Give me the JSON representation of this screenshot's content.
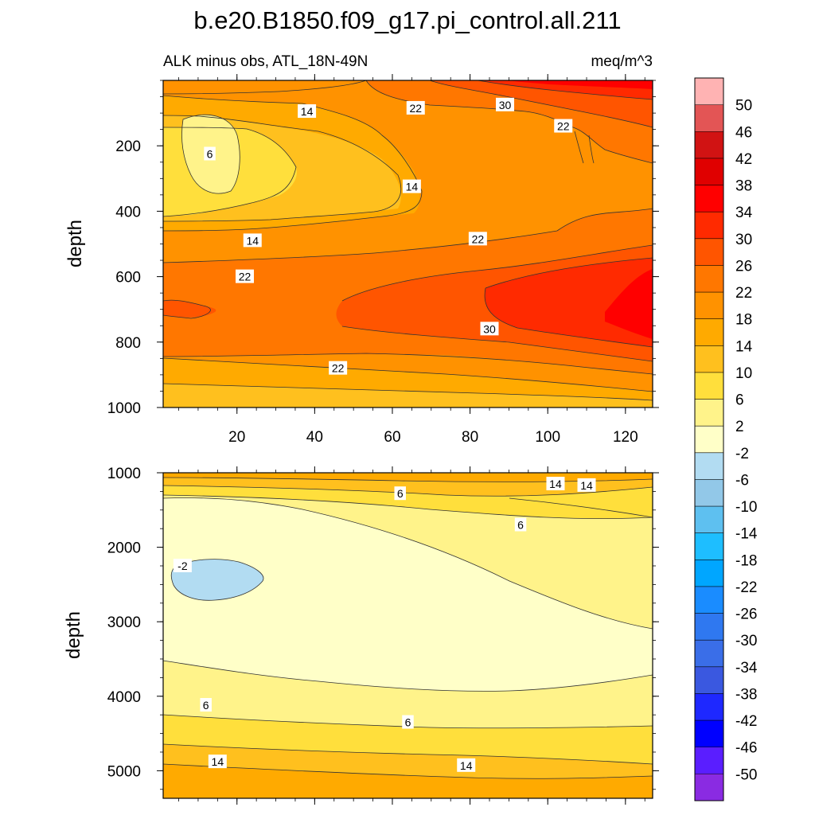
{
  "title": "b.e20.B1850.f09_g17.pi_control.all.211",
  "subtitle_left": "ALK minus obs, ATL_18N-49N",
  "subtitle_right": "meq/m^3",
  "chart_data": [
    {
      "type": "contour",
      "panel": "upper",
      "xlabel": "",
      "ylabel": "depth",
      "xlim": [
        1,
        127
      ],
      "ylim": [
        1000,
        0
      ],
      "x_ticks": [
        20,
        40,
        60,
        80,
        100,
        120
      ],
      "y_ticks": [
        200,
        400,
        600,
        800,
        1000
      ],
      "contour_labels": [
        {
          "text": "14",
          "x": 38,
          "depth": 95
        },
        {
          "text": "22",
          "x": 66,
          "depth": 85
        },
        {
          "text": "30",
          "x": 89,
          "depth": 75
        },
        {
          "text": "22",
          "x": 104,
          "depth": 140
        },
        {
          "text": "6",
          "x": 13,
          "depth": 225
        },
        {
          "text": "14",
          "x": 65,
          "depth": 325
        },
        {
          "text": "14",
          "x": 24,
          "depth": 490
        },
        {
          "text": "22",
          "x": 82,
          "depth": 485
        },
        {
          "text": "22",
          "x": 22,
          "depth": 600
        },
        {
          "text": "30",
          "x": 85,
          "depth": 760
        },
        {
          "text": "22",
          "x": 46,
          "depth": 880
        }
      ]
    },
    {
      "type": "contour",
      "panel": "lower",
      "xlabel": "",
      "ylabel": "depth",
      "xlim": [
        1,
        127
      ],
      "ylim": [
        5370,
        1000
      ],
      "y_ticks": [
        1000,
        2000,
        3000,
        4000,
        5000
      ],
      "contour_labels": [
        {
          "text": "14",
          "x": 102,
          "depth": 1150
        },
        {
          "text": "14",
          "x": 110,
          "depth": 1170
        },
        {
          "text": "6",
          "x": 62,
          "depth": 1280
        },
        {
          "text": "6",
          "x": 93,
          "depth": 1700
        },
        {
          "text": "-2",
          "x": 6,
          "depth": 2250
        },
        {
          "text": "6",
          "x": 12,
          "depth": 4120
        },
        {
          "text": "6",
          "x": 64,
          "depth": 4350
        },
        {
          "text": "14",
          "x": 15,
          "depth": 4880
        },
        {
          "text": "14",
          "x": 79,
          "depth": 4930
        }
      ]
    }
  ],
  "colorbar": {
    "labels": [
      "50",
      "46",
      "42",
      "38",
      "34",
      "30",
      "26",
      "22",
      "18",
      "14",
      "10",
      "6",
      "2",
      "-2",
      "-6",
      "-10",
      "-14",
      "-18",
      "-22",
      "-26",
      "-30",
      "-34",
      "-38",
      "-42",
      "-46",
      "-50"
    ],
    "colors": [
      "#ffb3b3",
      "#e35555",
      "#d11313",
      "#e00000",
      "#ff0000",
      "#ff2a00",
      "#ff5500",
      "#ff7700",
      "#ff9200",
      "#ffaa00",
      "#ffc01e",
      "#ffdf3c",
      "#fff38a",
      "#ffffc8",
      "#b2dcf2",
      "#92c8e8",
      "#5ec0f0",
      "#1ebeff",
      "#00a6ff",
      "#1a8cff",
      "#2f78f0",
      "#3a6ee8",
      "#3a58e0",
      "#1e28ff",
      "#0000ff",
      "#5a1eff",
      "#8a2be2"
    ]
  }
}
